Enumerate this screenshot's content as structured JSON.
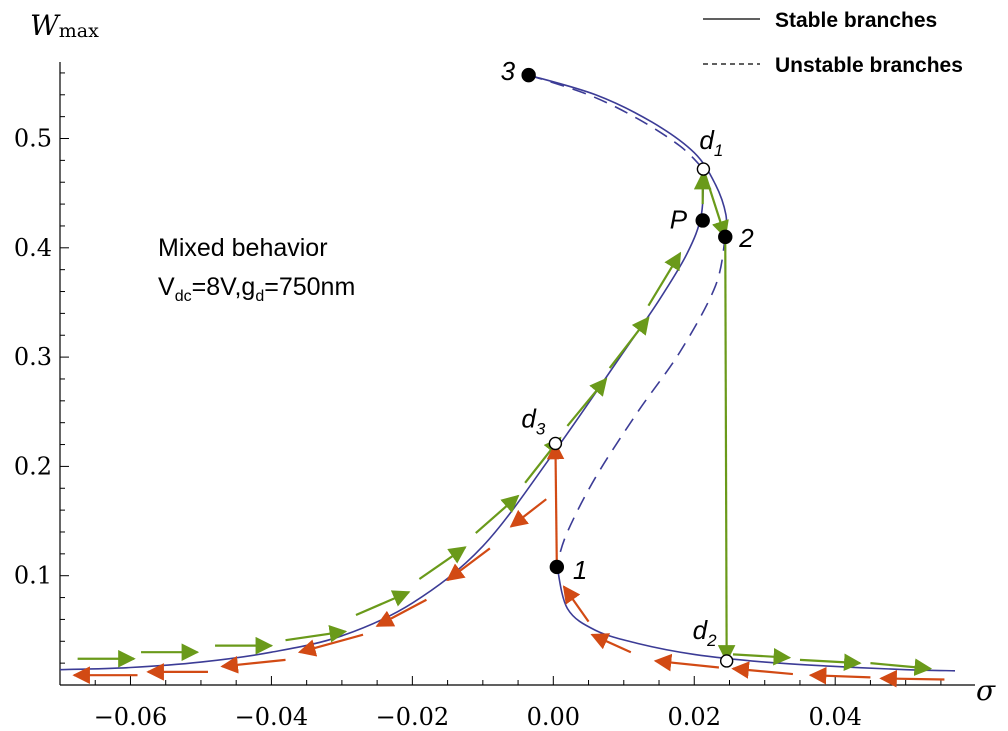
{
  "chart_data": {
    "type": "line",
    "xlabel": "σ",
    "ylabel_main": "W",
    "ylabel_sub": "max",
    "xlim": [
      -0.07,
      0.057
    ],
    "ylim": [
      0.0,
      0.57
    ],
    "x_ticks": [
      -0.06,
      -0.04,
      -0.02,
      0.0,
      0.02,
      0.04
    ],
    "x_tick_labels": [
      "−0.06",
      "−0.04",
      "−0.02",
      "0.00",
      "0.02",
      "0.04"
    ],
    "y_ticks": [
      0.1,
      0.2,
      0.3,
      0.4,
      0.5
    ],
    "y_tick_labels": [
      "0.1",
      "0.2",
      "0.3",
      "0.4",
      "0.5"
    ],
    "legend": {
      "placement": "top-right",
      "entries": [
        {
          "label": "Stable branches",
          "style": "solid"
        },
        {
          "label": "Unstable branches",
          "style": "dashed"
        }
      ]
    },
    "annotation": {
      "line1": "Mixed behavior",
      "line2_parts": [
        "V",
        "dc",
        "=8V,g",
        "d",
        "=750nm"
      ]
    },
    "colors": {
      "curve": "#3c3c96",
      "forward_arrows": "#6a9a1a",
      "backward_arrows": "#d24a14"
    },
    "series": [
      {
        "name": "Stable branches",
        "style": "solid",
        "segment": "lower-left branch (from left edge to d1)",
        "points": [
          [
            -0.07,
            0.014
          ],
          [
            -0.06,
            0.016
          ],
          [
            -0.05,
            0.021
          ],
          [
            -0.04,
            0.03
          ],
          [
            -0.03,
            0.045
          ],
          [
            -0.02,
            0.075
          ],
          [
            -0.01,
            0.127
          ],
          [
            0.0,
            0.212
          ],
          [
            0.01,
            0.305
          ],
          [
            0.015,
            0.352
          ],
          [
            0.019,
            0.395
          ],
          [
            0.021,
            0.43
          ],
          [
            0.0213,
            0.472
          ]
        ]
      },
      {
        "name": "Unstable branches",
        "style": "dashed",
        "segment": "upper branch (from 3 to d1)",
        "points": [
          [
            -0.0035,
            0.558
          ],
          [
            0.005,
            0.54
          ],
          [
            0.012,
            0.518
          ],
          [
            0.018,
            0.493
          ],
          [
            0.0213,
            0.472
          ]
        ]
      },
      {
        "name": "Stable branches",
        "style": "solid",
        "segment": "upper-right segment (from 3 to 2)",
        "points": [
          [
            -0.0035,
            0.558
          ],
          [
            0.006,
            0.54
          ],
          [
            0.014,
            0.515
          ],
          [
            0.02,
            0.487
          ],
          [
            0.023,
            0.458
          ],
          [
            0.0245,
            0.43
          ],
          [
            0.0244,
            0.41
          ]
        ]
      },
      {
        "name": "Unstable branches",
        "style": "dashed",
        "segment": "middle branch (from 2 down to 1)",
        "points": [
          [
            0.0244,
            0.41
          ],
          [
            0.023,
            0.365
          ],
          [
            0.018,
            0.305
          ],
          [
            0.012,
            0.25
          ],
          [
            0.006,
            0.19
          ],
          [
            0.002,
            0.14
          ],
          [
            0.0005,
            0.11
          ]
        ]
      },
      {
        "name": "Stable branches",
        "style": "solid",
        "segment": "lower-right branch (from 1 to right edge)",
        "points": [
          [
            0.0005,
            0.11
          ],
          [
            0.002,
            0.07
          ],
          [
            0.006,
            0.05
          ],
          [
            0.012,
            0.038
          ],
          [
            0.02,
            0.028
          ],
          [
            0.03,
            0.021
          ],
          [
            0.04,
            0.017
          ],
          [
            0.05,
            0.014
          ],
          [
            0.057,
            0.013
          ]
        ]
      }
    ],
    "points": [
      {
        "label": "3",
        "x": -0.0035,
        "y": 0.558,
        "filled": true,
        "sub": ""
      },
      {
        "label": "d",
        "sub": "1",
        "x": 0.0213,
        "y": 0.472,
        "filled": false
      },
      {
        "label": "P",
        "x": 0.0212,
        "y": 0.425,
        "filled": true,
        "sub": ""
      },
      {
        "label": "2",
        "x": 0.0244,
        "y": 0.41,
        "filled": true,
        "sub": ""
      },
      {
        "label": "d",
        "sub": "3",
        "x": 0.0003,
        "y": 0.221,
        "filled": false
      },
      {
        "label": "1",
        "x": 0.0005,
        "y": 0.108,
        "filled": true,
        "sub": ""
      },
      {
        "label": "d",
        "sub": "2",
        "x": 0.0246,
        "y": 0.022,
        "filled": false
      }
    ],
    "jumps": [
      {
        "from": [
          0.0005,
          0.108
        ],
        "to": [
          0.0003,
          0.221
        ],
        "direction": "backward"
      },
      {
        "from": [
          0.0213,
          0.472
        ],
        "to": [
          0.0244,
          0.41
        ],
        "direction": "forward"
      },
      {
        "from": [
          0.0244,
          0.41
        ],
        "to": [
          0.0246,
          0.022
        ],
        "direction": "forward"
      }
    ]
  }
}
